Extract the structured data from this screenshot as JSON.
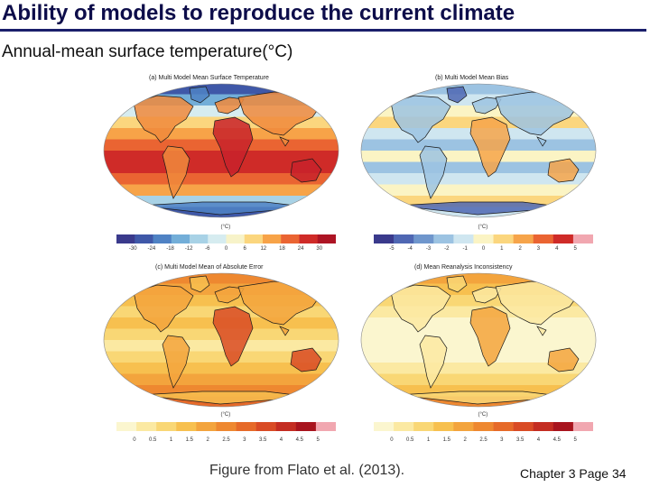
{
  "slide": {
    "title": "Ability of models to reproduce the current climate",
    "subtitle": "Annual-mean surface temperature(°C)",
    "caption": "Figure from Flato et al. (2013).",
    "footer": "Chapter 3 Page 34"
  },
  "panels": [
    {
      "title": "(a) Multi Model Mean Surface Temperature",
      "unit": "(°C)",
      "ticks": [
        "-30",
        "-24",
        "-18",
        "-12",
        "-6",
        "0",
        "6",
        "12",
        "18",
        "24",
        "30"
      ],
      "colors": [
        "#3a3a8c",
        "#3f58a8",
        "#4f82c4",
        "#73aed8",
        "#a8d2e6",
        "#d6ecf0",
        "#f7f3c9",
        "#fbd67e",
        "#f7a348",
        "#ea6432",
        "#cf2b28",
        "#ad1424"
      ],
      "scheme": "temperature"
    },
    {
      "title": "(b) Multi Model Mean Bias",
      "unit": "(°C)",
      "ticks": [
        "-5",
        "-4",
        "-3",
        "-2",
        "-1",
        "0",
        "1",
        "2",
        "3",
        "4",
        "5"
      ],
      "colors": [
        "#3a3a8c",
        "#4f67b3",
        "#6f96cc",
        "#9cc3e2",
        "#cfe6f0",
        "#fbf4c4",
        "#fbd67e",
        "#f6a44a",
        "#ea6432",
        "#cf2b28",
        "#f1a7b0"
      ],
      "scheme": "bias"
    },
    {
      "title": "(c) Multi Model Mean of Absolute Error",
      "unit": "(°C)",
      "ticks": [
        "0",
        "0.5",
        "1",
        "1.5",
        "2",
        "2.5",
        "3",
        "3.5",
        "4",
        "4.5",
        "5"
      ],
      "colors": [
        "#fbf6cf",
        "#fbe9a2",
        "#f9d775",
        "#f7c04f",
        "#f3a43d",
        "#ee8830",
        "#e66a29",
        "#d94b25",
        "#c42d22",
        "#a8141e",
        "#f1a7b0"
      ],
      "scheme": "error"
    },
    {
      "title": "(d) Mean Reanalysis Inconsistency",
      "unit": "(°C)",
      "ticks": [
        "0",
        "0.5",
        "1",
        "1.5",
        "2",
        "2.5",
        "3",
        "3.5",
        "4",
        "4.5",
        "5"
      ],
      "colors": [
        "#fbf6cf",
        "#fbe9a2",
        "#f9d775",
        "#f7c04f",
        "#f3a43d",
        "#ee8830",
        "#e66a29",
        "#d94b25",
        "#c42d22",
        "#a8141e",
        "#f1a7b0"
      ],
      "scheme": "reanalysis"
    }
  ]
}
